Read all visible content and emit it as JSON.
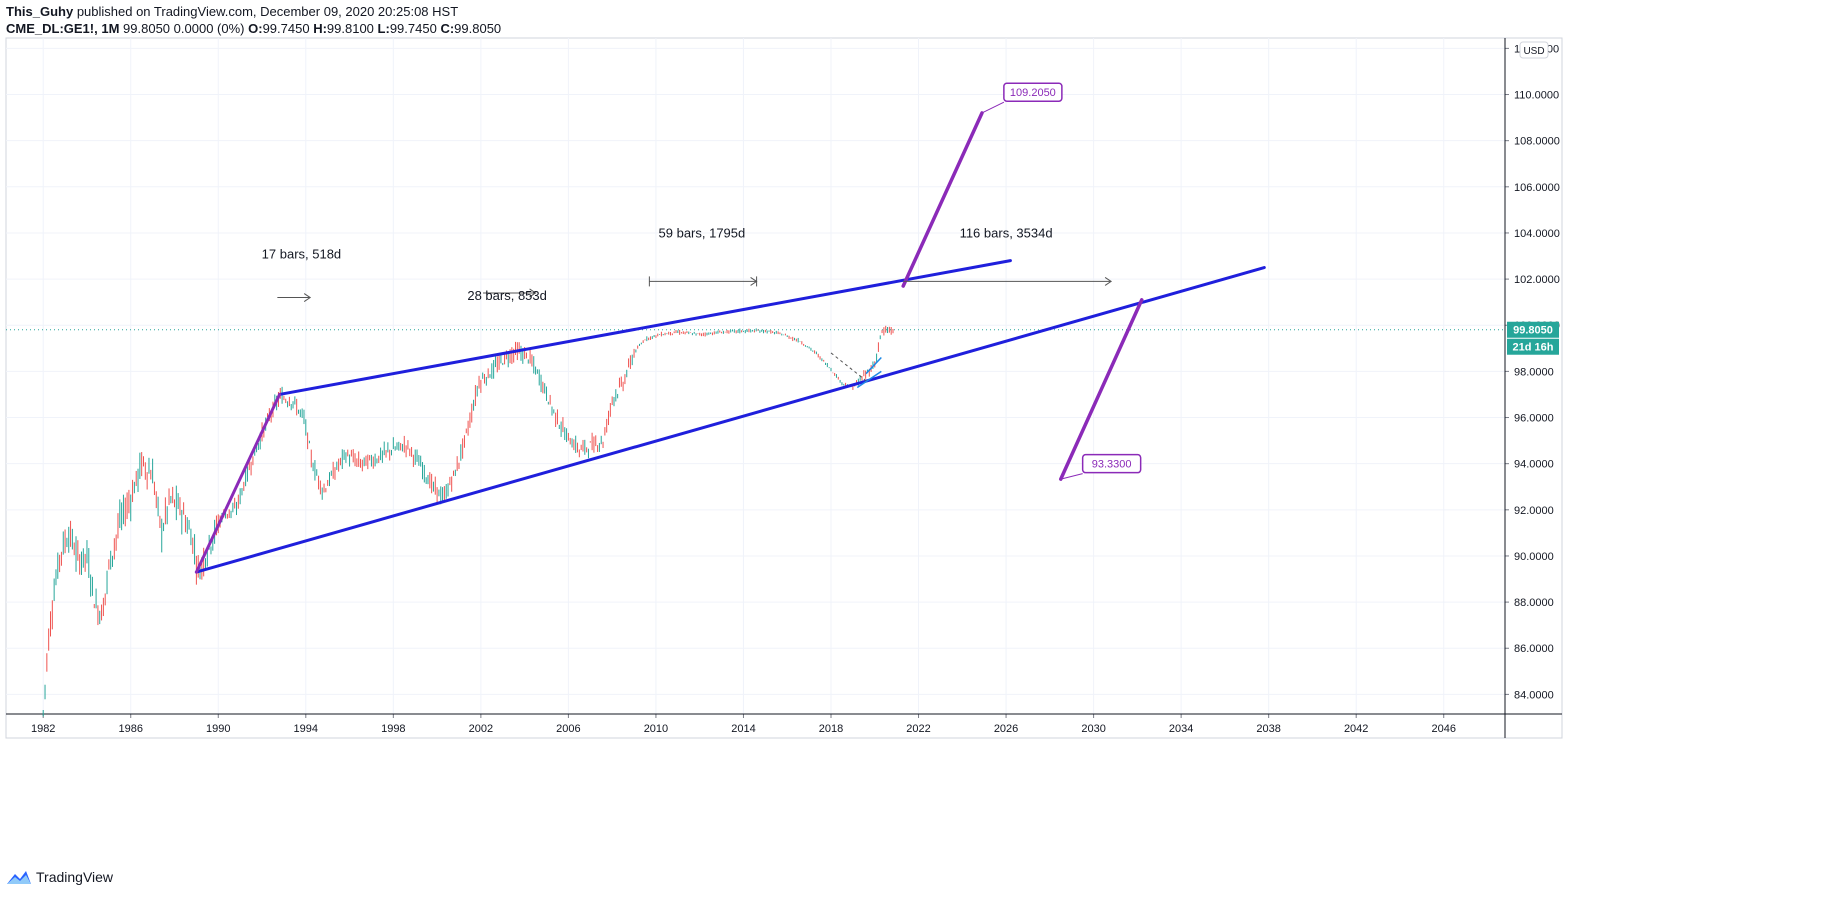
{
  "header": {
    "author": "This_Guhy",
    "published": "published on TradingView.com, December 09, 2020 20:25:08 HST",
    "symbol": "CME_DL:GE1!, 1M",
    "last": "99.8050",
    "change": "0.0000 (0%)",
    "open_label": "O:",
    "open": "99.7450",
    "high_label": "H:",
    "high": "99.8100",
    "low_label": "L:",
    "low": "99.7450",
    "close_label": "C:",
    "close": "99.8050"
  },
  "footer": {
    "brand": "TradingView",
    "brand_icon": "tradingview-logo-icon"
  },
  "colors": {
    "up": "#26a69a",
    "down": "#ef5350",
    "trendline": "#1f1fdc",
    "projection": "#8b2ab8",
    "price_tag": "#26a69a",
    "grid": "#f0f3fa"
  },
  "chart_data": {
    "type": "candlestick",
    "currency": "USD",
    "x_axis": {
      "type": "year",
      "range": [
        1980.3,
        2048.8
      ],
      "ticks": [
        "1982",
        "1986",
        "1990",
        "1994",
        "1998",
        "2002",
        "2006",
        "2010",
        "2014",
        "2018",
        "2022",
        "2026",
        "2030",
        "2034",
        "2038",
        "2042",
        "2046"
      ]
    },
    "y_axis": {
      "range": [
        83.15,
        112.45
      ],
      "position": "right",
      "ticks": [
        "84.0000",
        "86.0000",
        "88.0000",
        "90.0000",
        "92.0000",
        "94.0000",
        "96.0000",
        "98.0000",
        "100.0000",
        "102.0000",
        "104.0000",
        "106.0000",
        "108.0000",
        "110.0000",
        "112.0000"
      ]
    },
    "price_line": {
      "value": 99.805,
      "label": "99.8050",
      "countdown": "21d 16h"
    },
    "price_path": [
      [
        1982.0,
        83.2
      ],
      [
        1982.2,
        86.0
      ],
      [
        1982.5,
        88.5
      ],
      [
        1982.8,
        90.2
      ],
      [
        1983.2,
        91.0
      ],
      [
        1983.6,
        89.8
      ],
      [
        1984.0,
        90.0
      ],
      [
        1984.4,
        87.8
      ],
      [
        1984.7,
        87.5
      ],
      [
        1985.0,
        89.5
      ],
      [
        1985.5,
        91.5
      ],
      [
        1986.0,
        92.5
      ],
      [
        1986.5,
        94.0
      ],
      [
        1987.0,
        93.5
      ],
      [
        1987.4,
        91.0
      ],
      [
        1987.8,
        92.5
      ],
      [
        1988.3,
        92.0
      ],
      [
        1988.8,
        90.8
      ],
      [
        1989.1,
        89.3
      ],
      [
        1989.6,
        90.5
      ],
      [
        1990.2,
        91.8
      ],
      [
        1990.8,
        92.0
      ],
      [
        1991.3,
        93.5
      ],
      [
        1991.8,
        94.8
      ],
      [
        1992.3,
        96.0
      ],
      [
        1992.8,
        96.9
      ],
      [
        1993.4,
        96.7
      ],
      [
        1993.9,
        96.0
      ],
      [
        1994.3,
        94.0
      ],
      [
        1994.8,
        92.8
      ],
      [
        1995.2,
        93.5
      ],
      [
        1995.8,
        94.4
      ],
      [
        1996.5,
        94.0
      ],
      [
        1997.2,
        94.2
      ],
      [
        1997.9,
        94.6
      ],
      [
        1998.6,
        94.8
      ],
      [
        1999.2,
        94.0
      ],
      [
        1999.8,
        93.0
      ],
      [
        2000.3,
        92.5
      ],
      [
        2000.9,
        93.8
      ],
      [
        2001.4,
        95.5
      ],
      [
        2001.9,
        97.5
      ],
      [
        2002.5,
        98.0
      ],
      [
        2003.0,
        98.5
      ],
      [
        2003.6,
        98.9
      ],
      [
        2004.2,
        98.6
      ],
      [
        2004.8,
        97.5
      ],
      [
        2005.3,
        96.3
      ],
      [
        2005.9,
        95.2
      ],
      [
        2006.5,
        94.6
      ],
      [
        2007.1,
        94.8
      ],
      [
        2007.6,
        95.0
      ],
      [
        2008.0,
        96.8
      ],
      [
        2008.5,
        97.5
      ],
      [
        2009.0,
        98.8
      ],
      [
        2009.5,
        99.4
      ],
      [
        2010.2,
        99.6
      ],
      [
        2011.0,
        99.7
      ],
      [
        2012.0,
        99.6
      ],
      [
        2013.0,
        99.7
      ],
      [
        2014.0,
        99.75
      ],
      [
        2015.0,
        99.75
      ],
      [
        2015.8,
        99.6
      ],
      [
        2016.6,
        99.3
      ],
      [
        2017.3,
        98.8
      ],
      [
        2017.9,
        98.2
      ],
      [
        2018.5,
        97.5
      ],
      [
        2019.0,
        97.3
      ],
      [
        2019.5,
        97.8
      ],
      [
        2020.0,
        98.3
      ],
      [
        2020.3,
        99.7
      ],
      [
        2020.9,
        99.8
      ]
    ],
    "trendlines": [
      {
        "name": "upper-boundary",
        "points": [
          [
            1992.8,
            97.0
          ],
          [
            2026.2,
            102.8
          ]
        ]
      },
      {
        "name": "lower-boundary",
        "points": [
          [
            1989.0,
            89.3
          ],
          [
            2037.8,
            102.5
          ]
        ]
      },
      {
        "name": "impulse-leg",
        "points": [
          [
            1989.0,
            89.3
          ],
          [
            1992.8,
            97.0
          ]
        ]
      }
    ],
    "projections": [
      {
        "name": "projection-up",
        "points": [
          [
            2021.3,
            101.7
          ],
          [
            2024.9,
            109.2
          ]
        ],
        "label": "109.2050",
        "label_at": [
          2025.9,
          110.1
        ]
      },
      {
        "name": "projection-down",
        "points": [
          [
            2032.2,
            101.1
          ],
          [
            2028.5,
            93.33
          ]
        ],
        "label": "93.3300",
        "label_at": [
          2029.5,
          94.0
        ]
      }
    ],
    "annotations": [
      {
        "text": "17 bars, 518d",
        "at": [
          1993.8,
          102.9
        ]
      },
      {
        "text": "28 bars, 853d",
        "at": [
          2003.2,
          101.1
        ]
      },
      {
        "text": "59 bars, 1795d",
        "at": [
          2012.1,
          103.8
        ]
      },
      {
        "text": "116 bars, 3534d",
        "at": [
          2026.0,
          103.8
        ]
      }
    ],
    "range_markers": [
      {
        "from": [
          1992.7,
          101.2
        ],
        "to": [
          1994.2,
          101.2
        ],
        "type": "arrow"
      },
      {
        "from": [
          2002.1,
          101.4
        ],
        "to": [
          2004.5,
          101.4
        ],
        "type": "arrow"
      },
      {
        "from": [
          2009.7,
          101.9
        ],
        "to": [
          2014.6,
          101.9
        ],
        "type": "range"
      },
      {
        "from": [
          2021.3,
          101.9
        ],
        "to": [
          2030.8,
          101.9
        ],
        "type": "arrow"
      }
    ]
  }
}
